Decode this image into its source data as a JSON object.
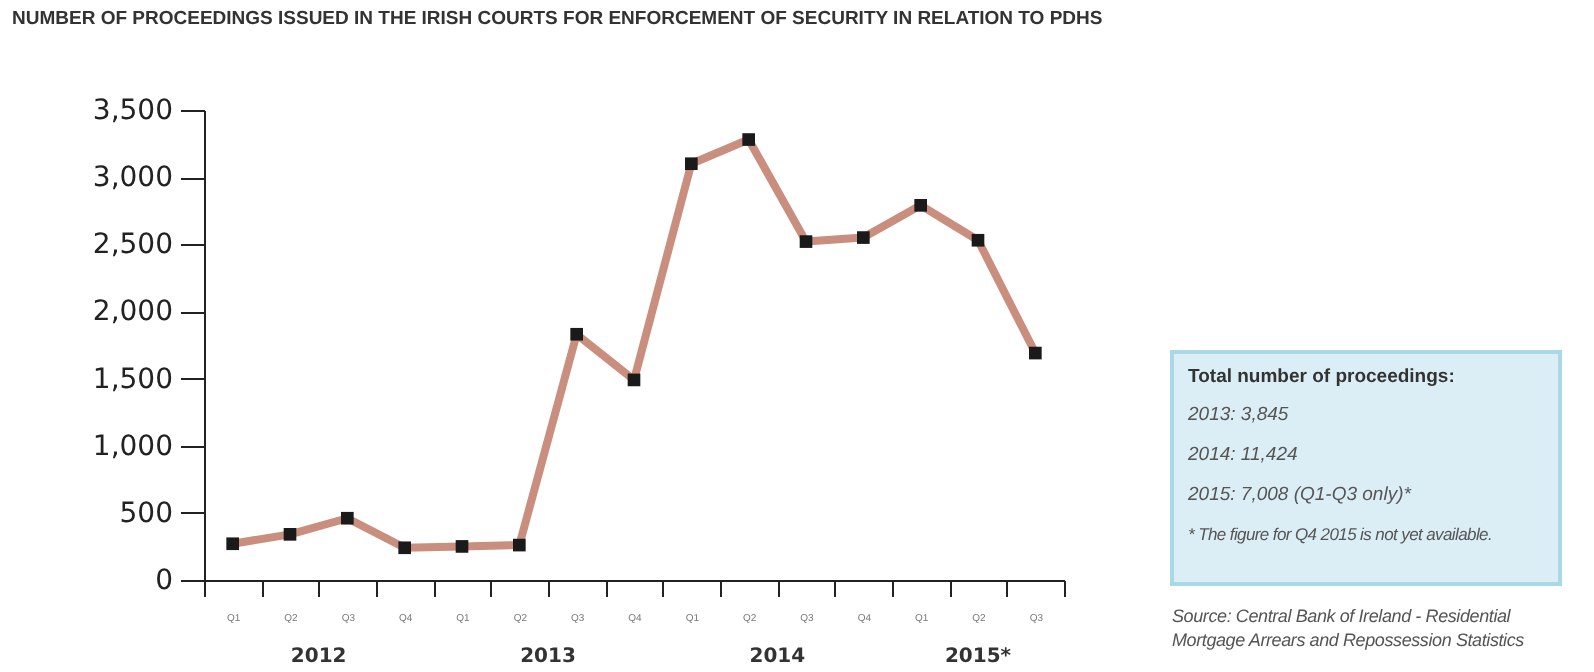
{
  "chart_data": {
    "type": "line",
    "title": "NUMBER OF PROCEEDINGS ISSUED IN THE IRISH COURTS FOR ENFORCEMENT OF SECURITY IN RELATION TO PDHS",
    "categories": [
      "Q1",
      "Q2",
      "Q3",
      "Q4",
      "Q1",
      "Q2",
      "Q3",
      "Q4",
      "Q1",
      "Q2",
      "Q3",
      "Q4",
      "Q1",
      "Q2",
      "Q3"
    ],
    "series": [
      {
        "color": "#c98e7e",
        "values": [
          270,
          340,
          460,
          240,
          250,
          260,
          1830,
          1490,
          3100,
          3280,
          2520,
          2550,
          2790,
          2530,
          1690
        ]
      }
    ],
    "ylim": [
      0,
      3500
    ],
    "yticks": [
      0,
      500,
      {
        "value": 1000,
        "label": "1,000"
      },
      {
        "value": 1500,
        "label": "1,500"
      },
      {
        "value": 2000,
        "label": "2,000"
      },
      {
        "value": 2500,
        "label": "2,500"
      },
      {
        "value": 3000,
        "label": "3,000"
      },
      {
        "value": 3500,
        "label": "3,500"
      }
    ],
    "grid": false,
    "marker": "square",
    "line_style": "solid",
    "annotations": [
      "2012",
      "2013",
      "2014",
      "2015*",
      "Total number of proceedings:",
      "2013: 3,845",
      "2014: 11,424",
      "2015: 7,008 (Q1-Q3 only)*",
      "* The figure for Q4 2015 is not yet available.",
      "Source: Central Bank of Ireland - Residential Mortgage Arrears and Repossession Statistics"
    ]
  }
}
